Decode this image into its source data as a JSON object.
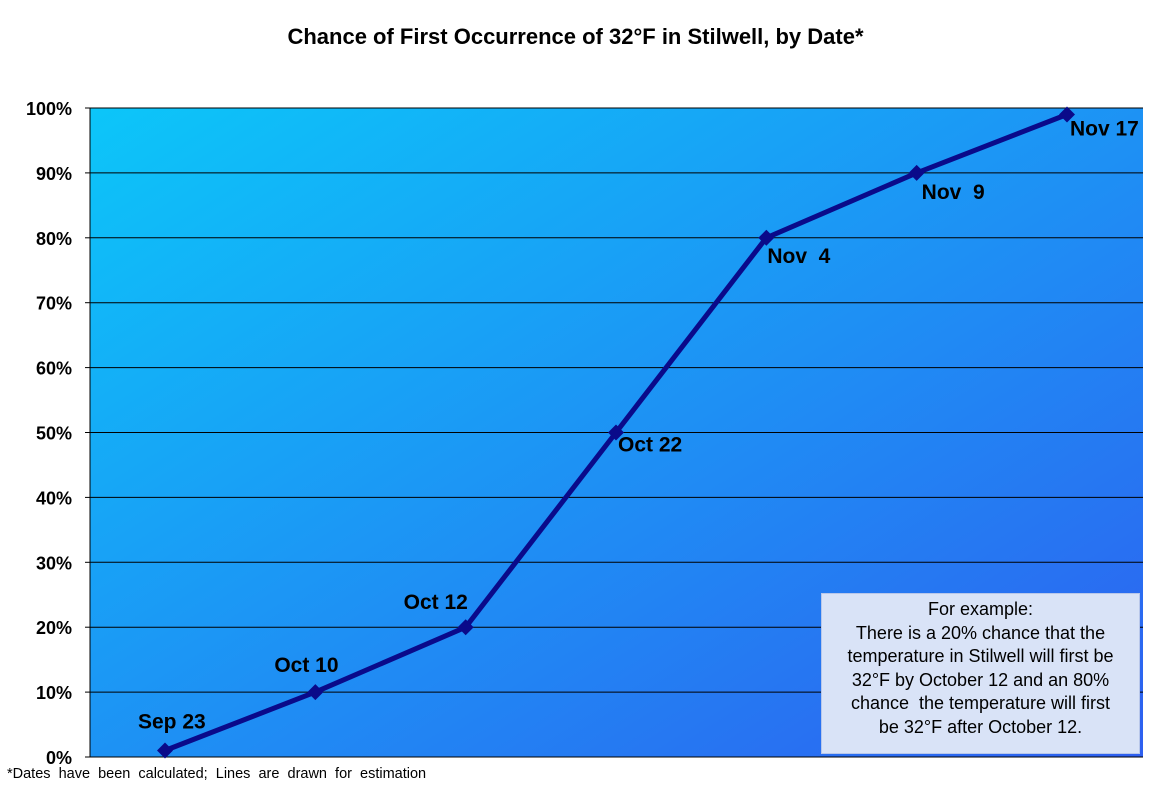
{
  "chart_data": {
    "type": "line",
    "title": "Chance of First Occurrence of 32°F in Stilwell, by Date*",
    "ylim": [
      0,
      100
    ],
    "yticks": [
      "0%",
      "10%",
      "20%",
      "30%",
      "40%",
      "50%",
      "60%",
      "70%",
      "80%",
      "90%",
      "100%"
    ],
    "grid": true,
    "series": [
      {
        "points": [
          {
            "label": "Sep 23",
            "y": 1
          },
          {
            "label": "Oct 10",
            "y": 10
          },
          {
            "label": "Oct 12",
            "y": 20
          },
          {
            "label": "Oct 22",
            "y": 50
          },
          {
            "label": "Nov  4",
            "y": 80
          },
          {
            "label": "Nov  9",
            "y": 90
          },
          {
            "label": "Nov 17",
            "y": 99
          }
        ]
      }
    ],
    "colors": {
      "line": "#0a0a8a",
      "plot_gradient_start": "#0cc6f9",
      "plot_gradient_end": "#2e5ff0",
      "gridline": "#000000"
    }
  },
  "annotation": {
    "lines": [
      "For example:",
      "There is a 20% chance that the",
      "temperature in Stilwell will first be",
      "32°F by October 12 and an 80%",
      "chance  the temperature will first",
      "be 32°F after October 12."
    ]
  },
  "footnote": "*Dates  have  been  calculated;  Lines  are  drawn  for  estimation"
}
